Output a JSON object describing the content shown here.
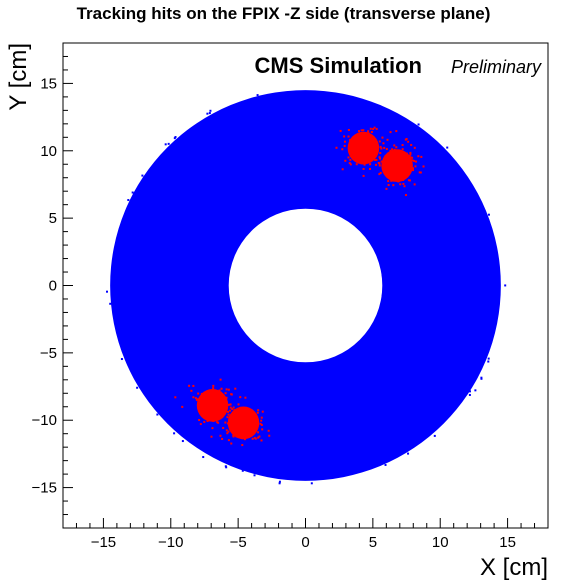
{
  "chart_data": {
    "type": "scatter",
    "title": "Tracking hits on the FPIX -Z side (transverse plane)",
    "xlabel": "X [cm]",
    "ylabel": "Y [cm]",
    "xlim": [
      -18,
      18
    ],
    "ylim": [
      -18,
      18
    ],
    "xticks": [
      -15,
      -10,
      -5,
      0,
      5,
      10,
      15
    ],
    "yticks": [
      -15,
      -10,
      -5,
      0,
      5,
      10,
      15
    ],
    "xtick_labels": [
      "−15",
      "−10",
      "−5",
      "0",
      "5",
      "10",
      "15"
    ],
    "ytick_labels": [
      "−15",
      "−10",
      "−5",
      "0",
      "5",
      "10",
      "15"
    ],
    "annotation_main": "CMS Simulation",
    "annotation_sub": "Preliminary",
    "grid": false,
    "series": [
      {
        "kind": "annulus",
        "color": "#0000ff",
        "inner_radius": 5.7,
        "outer_radius": 14.5
      },
      {
        "kind": "clusters",
        "color": "#ff0000",
        "clusters": [
          {
            "x": 4.3,
            "y": 10.2,
            "spread": 0.9
          },
          {
            "x": 6.8,
            "y": 8.9,
            "spread": 0.9
          },
          {
            "x": -6.9,
            "y": -8.9,
            "spread": 0.9
          },
          {
            "x": -4.6,
            "y": -10.2,
            "spread": 0.9
          }
        ]
      }
    ]
  }
}
